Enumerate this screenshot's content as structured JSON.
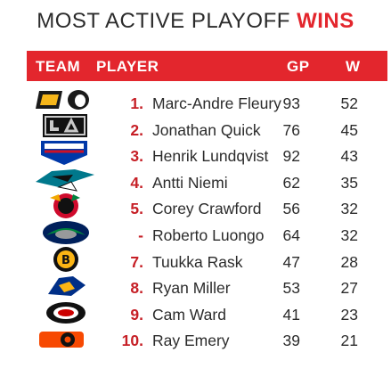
{
  "title": {
    "text": "MOST ACTIVE PLAYOFF",
    "accent": "WINS"
  },
  "header": {
    "team": "TEAM",
    "player": "PLAYER",
    "gp": "GP",
    "w": "W"
  },
  "colors": {
    "accent": "#e3262d",
    "rank": "#c61f26",
    "text": "#2b2b2b"
  },
  "rows": [
    {
      "rank": "1.",
      "name": "Marc-Andre Fleury",
      "gp": "93",
      "w": "52",
      "team_logo": "pittsburgh-penguins-logo"
    },
    {
      "rank": "2.",
      "name": "Jonathan Quick",
      "gp": "76",
      "w": "45",
      "team_logo": "los-angeles-kings-logo"
    },
    {
      "rank": "3.",
      "name": "Henrik Lundqvist",
      "gp": "92",
      "w": "43",
      "team_logo": "new-york-rangers-logo"
    },
    {
      "rank": "4.",
      "name": "Antti Niemi",
      "gp": "62",
      "w": "35",
      "team_logo": "san-jose-sharks-logo"
    },
    {
      "rank": "5.",
      "name": "Corey Crawford",
      "gp": "56",
      "w": "32",
      "team_logo": "chicago-blackhawks-logo"
    },
    {
      "rank": "-",
      "name": "Roberto Luongo",
      "gp": "64",
      "w": "32",
      "team_logo": "vancouver-canucks-logo"
    },
    {
      "rank": "7.",
      "name": "Tuukka Rask",
      "gp": "47",
      "w": "28",
      "team_logo": "boston-bruins-logo"
    },
    {
      "rank": "8.",
      "name": "Ryan Miller",
      "gp": "53",
      "w": "27",
      "team_logo": "st-louis-blues-logo"
    },
    {
      "rank": "9.",
      "name": "Cam Ward",
      "gp": "41",
      "w": "23",
      "team_logo": "carolina-hurricanes-logo"
    },
    {
      "rank": "10.",
      "name": "Ray Emery",
      "gp": "39",
      "w": "21",
      "team_logo": "philadelphia-flyers-logo"
    }
  ]
}
